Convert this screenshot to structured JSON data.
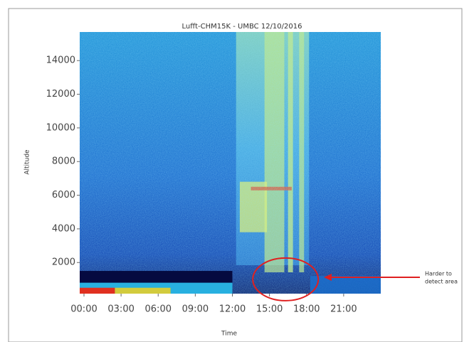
{
  "chart_data": {
    "type": "heatmap",
    "title": "Lufft-CHM15K - UMBC 12/10/2016",
    "x_label": "Time",
    "y_label": "Altitude",
    "xlim": [
      0,
      24
    ],
    "xticks": [
      {
        "value": 0,
        "label": "00:00"
      },
      {
        "value": 3,
        "label": "03:00"
      },
      {
        "value": 6,
        "label": "06:00"
      },
      {
        "value": 9,
        "label": "09:00"
      },
      {
        "value": 12,
        "label": "12:00"
      },
      {
        "value": 15,
        "label": "15:00"
      },
      {
        "value": 18,
        "label": "18:00"
      },
      {
        "value": 21,
        "label": "21:00"
      }
    ],
    "ylim": [
      150,
      15700
    ],
    "yticks": [
      2000,
      4000,
      6000,
      8000,
      10000,
      12000,
      14000
    ],
    "annotation": [
      "Harder to",
      "detect area"
    ],
    "annotation_color": "#e02020"
  }
}
